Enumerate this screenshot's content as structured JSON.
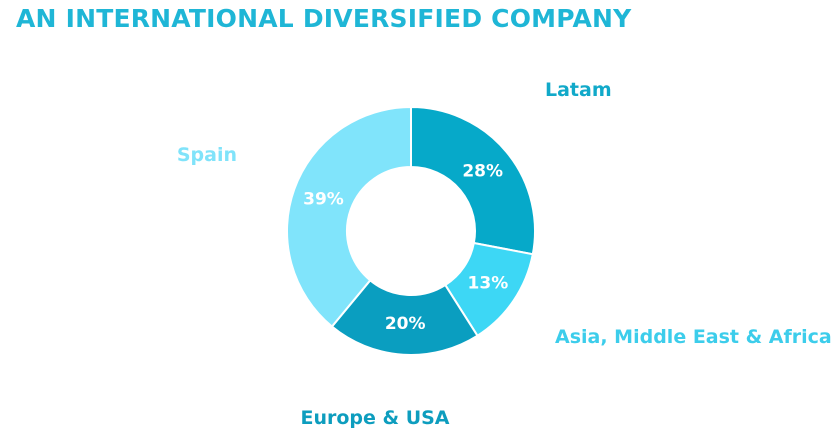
{
  "title": "AN INTERNATIONAL DIVERSIFIED COMPANY",
  "colors": {
    "title": "#1FB6D6",
    "background": "#FFFFFF"
  },
  "chart_data": {
    "type": "pie",
    "donut": true,
    "title": "",
    "start_angle_deg": 0,
    "direction": "clockwise",
    "slices": [
      {
        "label": "Latam",
        "value": 28,
        "display": "28%",
        "color": "#06A9C9",
        "label_color": "#11A9C9"
      },
      {
        "label": "Asia, Middle East & Africa",
        "value": 13,
        "display": "13%",
        "color": "#3DD7F5",
        "label_color": "#3CCDEB"
      },
      {
        "label": "Europe & USA",
        "value": 20,
        "display": "20%",
        "color": "#0A9EC0",
        "label_color": "#0D9DBE"
      },
      {
        "label": "Spain",
        "value": 39,
        "display": "39%",
        "color": "#80E4FB",
        "label_color": "#80E3FA"
      }
    ]
  }
}
